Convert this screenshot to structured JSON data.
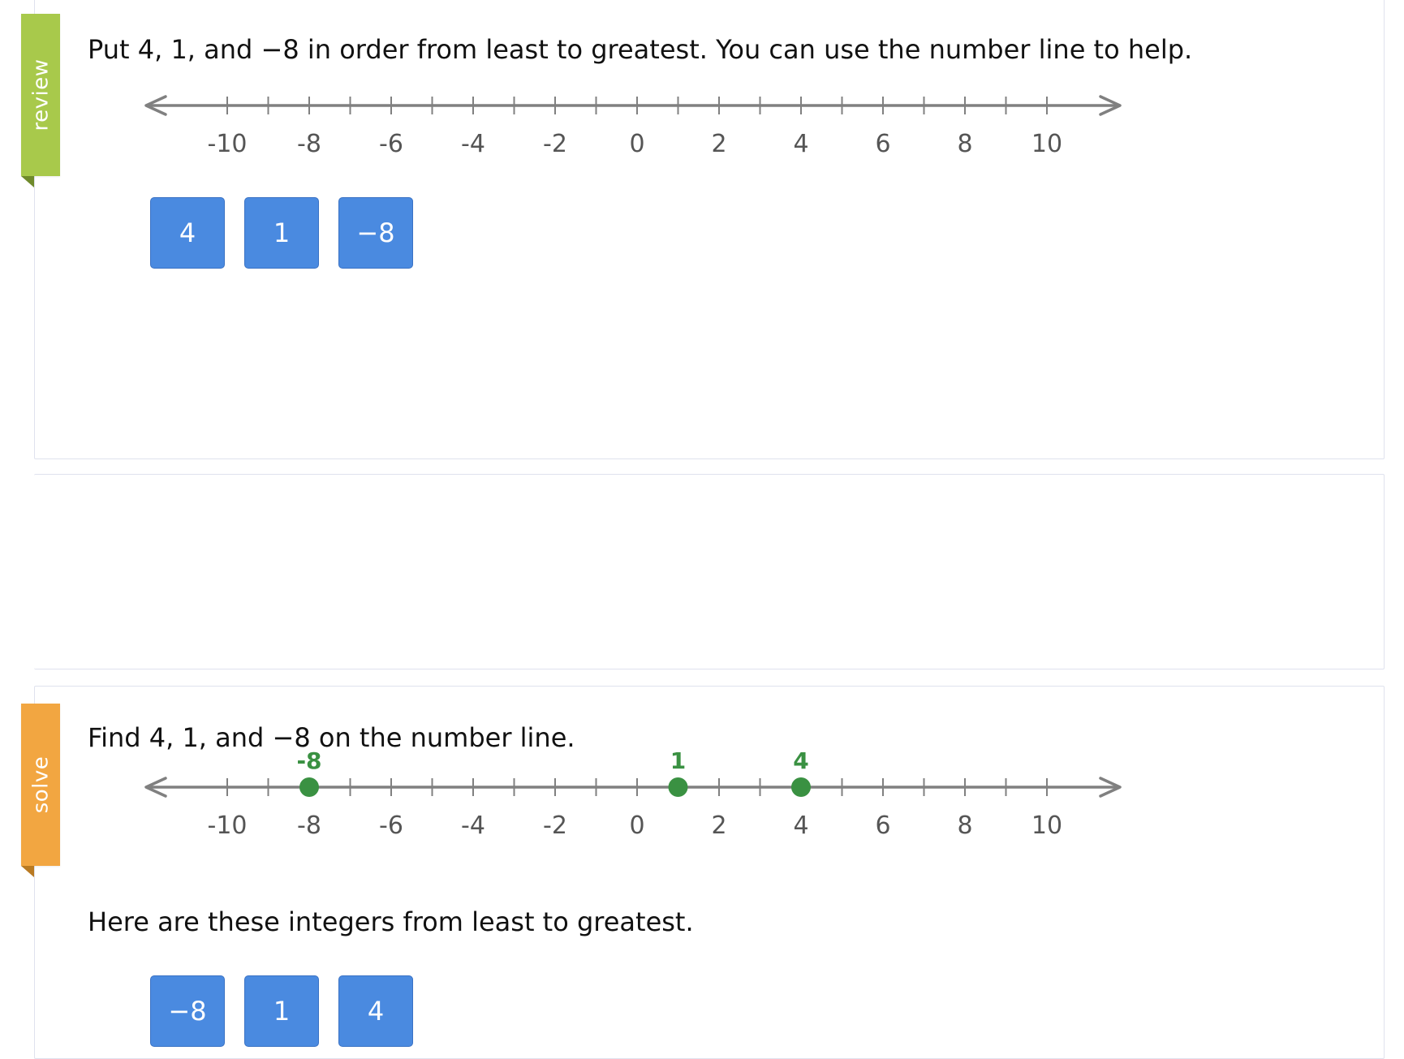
{
  "review": {
    "tag": "review",
    "prompt": "Put 4, 1, and −8 in order from least to greatest. You can use the number line to help.",
    "tiles": [
      "4",
      "1",
      "−8"
    ]
  },
  "solve": {
    "tag": "solve",
    "prompt": "Find 4, 1, and −8 on the number line.",
    "order_prompt": "Here are these integers from least to greatest.",
    "tiles": [
      "−8",
      "1",
      "4"
    ]
  },
  "number_line": {
    "min": -11,
    "max": 11,
    "tick_step": 1,
    "label_values": [
      -10,
      -8,
      -6,
      -4,
      -2,
      0,
      2,
      4,
      6,
      8,
      10
    ],
    "labels": [
      "-10",
      "-8",
      "-6",
      "-4",
      "-2",
      "0",
      "2",
      "4",
      "6",
      "8",
      "10"
    ],
    "line_color": "#808080",
    "label_color": "#555555"
  },
  "solve_points": [
    {
      "value": -8,
      "label": "-8"
    },
    {
      "value": 1,
      "label": "1"
    },
    {
      "value": 4,
      "label": "4"
    }
  ],
  "colors": {
    "review_tag": "#a8c94b",
    "solve_tag": "#f2a641",
    "tile": "#4a8ae0",
    "point": "#3a9142"
  }
}
